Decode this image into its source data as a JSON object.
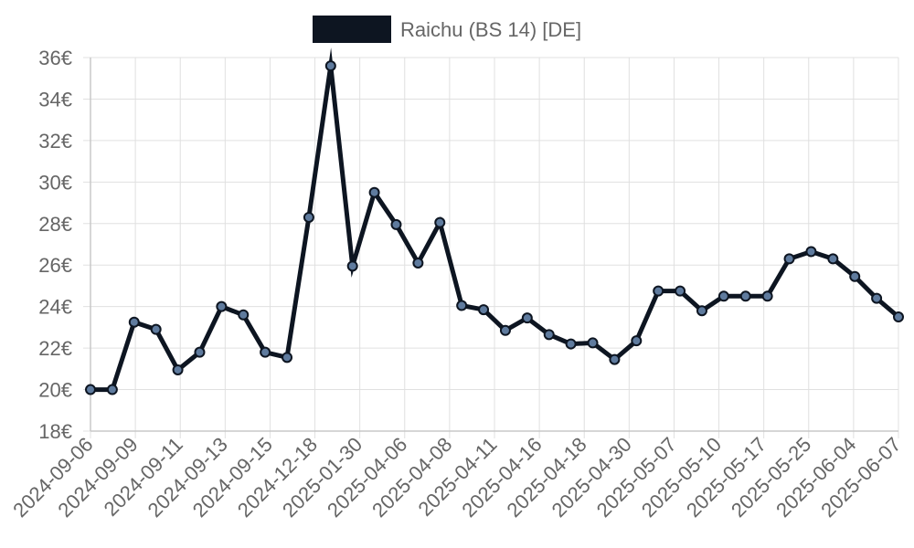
{
  "chart_data": {
    "type": "line",
    "legend": {
      "position": "top",
      "label": "Raichu (BS 14) [DE]"
    },
    "colors": {
      "line": "#0d1521",
      "point_fill": "#5f7b9e",
      "grid": "#e0e0e0",
      "axis": "#c8c8c8",
      "text": "#666666"
    },
    "ylim": [
      18,
      36
    ],
    "y_ticks": [
      "18€",
      "20€",
      "22€",
      "24€",
      "26€",
      "28€",
      "30€",
      "32€",
      "34€",
      "36€"
    ],
    "x_ticks": [
      "2024-09-06",
      "2024-09-09",
      "2024-09-11",
      "2024-09-13",
      "2024-09-15",
      "2024-12-18",
      "2025-01-30",
      "2025-04-06",
      "2025-04-08",
      "2025-04-11",
      "2025-04-16",
      "2025-04-18",
      "2025-04-30",
      "2025-05-07",
      "2025-05-10",
      "2025-05-17",
      "2025-05-25",
      "2025-06-04",
      "2025-06-07"
    ],
    "grid": true,
    "series": [
      {
        "values": [
          20.0,
          20.0,
          23.25,
          22.9,
          20.95,
          21.8,
          24.0,
          23.6,
          21.8,
          21.55,
          28.3,
          35.6,
          25.95,
          29.5,
          27.95,
          26.1,
          28.05,
          24.05,
          23.85,
          22.85,
          23.45,
          22.65,
          22.2,
          22.25,
          21.45,
          22.35,
          24.75,
          24.75,
          23.8,
          24.5,
          24.5,
          24.5,
          26.3,
          26.65,
          26.3,
          25.45,
          24.4,
          23.5
        ]
      }
    ]
  }
}
